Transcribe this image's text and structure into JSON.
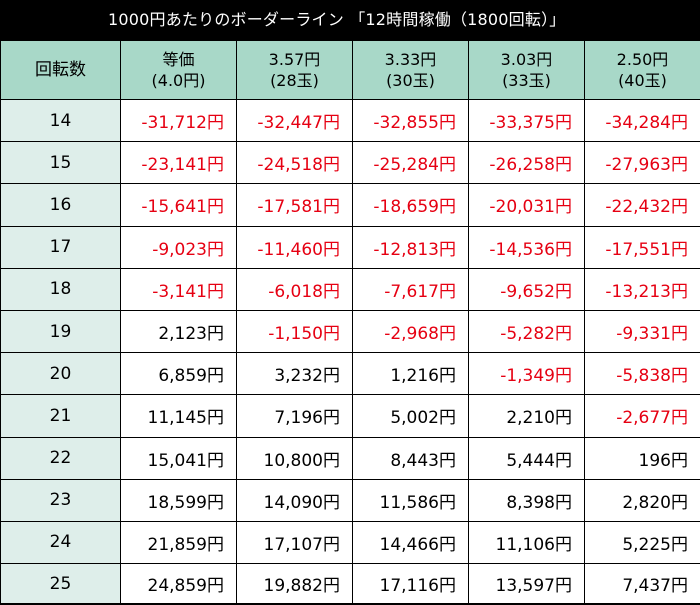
{
  "title": "1000円あたりのボーダーライン 「12時間稼働（1800回転）」",
  "header": {
    "spin": "回転数",
    "columns": [
      {
        "line1": "等価",
        "line2": "(4.0円)"
      },
      {
        "line1": "3.57円",
        "line2": "(28玉)"
      },
      {
        "line1": "3.33円",
        "line2": "(30玉)"
      },
      {
        "line1": "3.03円",
        "line2": "(33玉)"
      },
      {
        "line1": "2.50円",
        "line2": "(40玉)"
      }
    ]
  },
  "rows": [
    {
      "spin": "14",
      "values": [
        "-31,712円",
        "-32,447円",
        "-32,855円",
        "-33,375円",
        "-34,284円"
      ]
    },
    {
      "spin": "15",
      "values": [
        "-23,141円",
        "-24,518円",
        "-25,284円",
        "-26,258円",
        "-27,963円"
      ]
    },
    {
      "spin": "16",
      "values": [
        "-15,641円",
        "-17,581円",
        "-18,659円",
        "-20,031円",
        "-22,432円"
      ]
    },
    {
      "spin": "17",
      "values": [
        "-9,023円",
        "-11,460円",
        "-12,813円",
        "-14,536円",
        "-17,551円"
      ]
    },
    {
      "spin": "18",
      "values": [
        "-3,141円",
        "-6,018円",
        "-7,617円",
        "-9,652円",
        "-13,213円"
      ]
    },
    {
      "spin": "19",
      "values": [
        "2,123円",
        "-1,150円",
        "-2,968円",
        "-5,282円",
        "-9,331円"
      ]
    },
    {
      "spin": "20",
      "values": [
        "6,859円",
        "3,232円",
        "1,216円",
        "-1,349円",
        "-5,838円"
      ]
    },
    {
      "spin": "21",
      "values": [
        "11,145円",
        "7,196円",
        "5,002円",
        "2,210円",
        "-2,677円"
      ]
    },
    {
      "spin": "22",
      "values": [
        "15,041円",
        "10,800円",
        "8,443円",
        "5,444円",
        "196円"
      ]
    },
    {
      "spin": "23",
      "values": [
        "18,599円",
        "14,090円",
        "11,586円",
        "8,398円",
        "2,820円"
      ]
    },
    {
      "spin": "24",
      "values": [
        "21,859円",
        "17,107円",
        "14,466円",
        "11,106円",
        "5,225円"
      ]
    },
    {
      "spin": "25",
      "values": [
        "24,859円",
        "19,882円",
        "17,116円",
        "13,597円",
        "7,437円"
      ]
    }
  ],
  "colors": {
    "negative": "#e60012",
    "header_bg": "#a8d8c8",
    "spin_bg": "#deeeea"
  }
}
